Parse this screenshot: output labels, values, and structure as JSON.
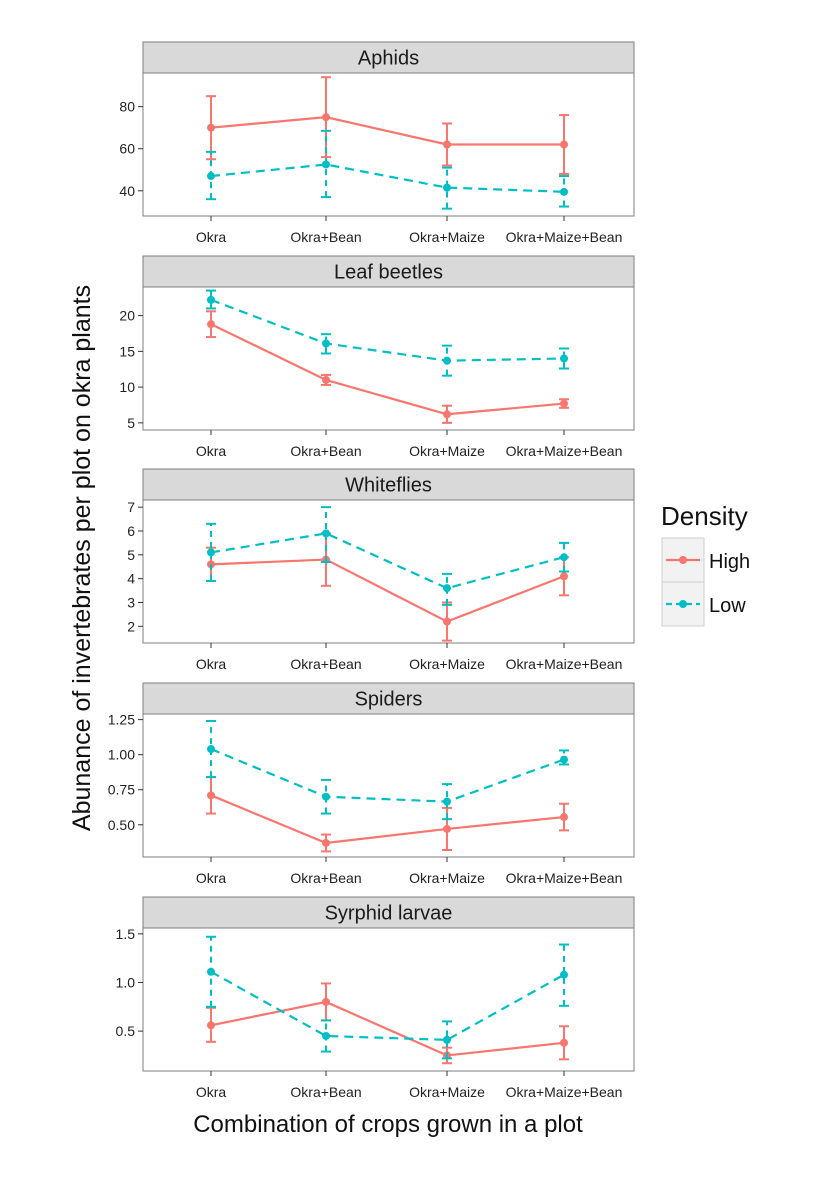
{
  "chart_data": {
    "type": "line",
    "ylabel": "Abunance of invertebrates per plot on okra plants",
    "xlabel": "Combination of crops grown in a plot",
    "categories": [
      "Okra",
      "Okra+Bean",
      "Okra+Maize",
      "Okra+Maize+Bean"
    ],
    "legend": {
      "title": "Density",
      "placement": "right",
      "entries": [
        "High",
        "Low"
      ]
    },
    "colors": {
      "High": "#F8766D",
      "Low": "#00BFC4",
      "strip": "#d9d9d9",
      "panel_border": "#7f7f7f"
    },
    "panels": [
      {
        "title": "Aphids",
        "ylim": [
          28,
          96
        ],
        "yticks": [
          40,
          60,
          80
        ],
        "ytick_labels": [
          "40",
          "60",
          "80"
        ],
        "series": [
          {
            "name": "High",
            "values": [
              70,
              75,
              62,
              62
            ],
            "lower": [
              55,
              56,
              52,
              48
            ],
            "upper": [
              85,
              94,
              72,
              76
            ]
          },
          {
            "name": "Low",
            "values": [
              47,
              52.5,
              41.5,
              39.5
            ],
            "lower": [
              36,
              37,
              31.5,
              32.5
            ],
            "upper": [
              58.5,
              68.5,
              51,
              47
            ]
          }
        ]
      },
      {
        "title": "Leaf beetles",
        "ylim": [
          4,
          24
        ],
        "yticks": [
          5,
          10,
          15,
          20
        ],
        "ytick_labels": [
          "5",
          "10",
          "15",
          "20"
        ],
        "series": [
          {
            "name": "High",
            "values": [
              18.8,
              11.0,
              6.2,
              7.7
            ],
            "lower": [
              17.0,
              10.3,
              5.0,
              7.1
            ],
            "upper": [
              20.6,
              11.7,
              7.4,
              8.3
            ]
          },
          {
            "name": "Low",
            "values": [
              22.2,
              16.1,
              13.7,
              14.0
            ],
            "lower": [
              21.0,
              14.7,
              11.6,
              12.6
            ],
            "upper": [
              23.5,
              17.4,
              15.8,
              15.4
            ]
          }
        ]
      },
      {
        "title": "Whiteflies",
        "ylim": [
          1.3,
          7.3
        ],
        "yticks": [
          2,
          3,
          4,
          5,
          6,
          7
        ],
        "ytick_labels": [
          "2",
          "3",
          "4",
          "5",
          "6",
          "7"
        ],
        "series": [
          {
            "name": "High",
            "values": [
              4.6,
              4.8,
              2.2,
              4.1
            ],
            "lower": [
              3.9,
              3.7,
              1.4,
              3.3
            ],
            "upper": [
              5.3,
              5.9,
              3.0,
              4.9
            ]
          },
          {
            "name": "Low",
            "values": [
              5.1,
              5.9,
              3.6,
              4.9
            ],
            "lower": [
              3.9,
              4.7,
              2.9,
              4.3
            ],
            "upper": [
              6.3,
              7.0,
              4.2,
              5.5
            ]
          }
        ]
      },
      {
        "title": "Spiders",
        "ylim": [
          0.27,
          1.29
        ],
        "yticks": [
          0.5,
          0.75,
          1.0,
          1.25
        ],
        "ytick_labels": [
          "0.50",
          "0.75",
          "1.00",
          "1.25"
        ],
        "series": [
          {
            "name": "High",
            "values": [
              0.71,
              0.37,
              0.47,
              0.555
            ],
            "lower": [
              0.58,
              0.31,
              0.32,
              0.46
            ],
            "upper": [
              0.84,
              0.43,
              0.62,
              0.65
            ]
          },
          {
            "name": "Low",
            "values": [
              1.04,
              0.7,
              0.665,
              0.965
            ],
            "lower": [
              0.84,
              0.58,
              0.54,
              0.93
            ],
            "upper": [
              1.24,
              0.82,
              0.79,
              1.03
            ]
          }
        ]
      },
      {
        "title": "Syrphid larvae",
        "ylim": [
          0.09,
          1.56
        ],
        "yticks": [
          0.5,
          1.0,
          1.5
        ],
        "ytick_labels": [
          "0.5",
          "1.0",
          "1.5"
        ],
        "series": [
          {
            "name": "High",
            "values": [
              0.56,
              0.8,
              0.25,
              0.38
            ],
            "lower": [
              0.39,
              0.61,
              0.17,
              0.21
            ],
            "upper": [
              0.74,
              0.99,
              0.33,
              0.55
            ]
          },
          {
            "name": "Low",
            "values": [
              1.11,
              0.45,
              0.41,
              1.08
            ],
            "lower": [
              0.75,
              0.29,
              0.22,
              0.76
            ],
            "upper": [
              1.47,
              0.61,
              0.6,
              1.39
            ]
          }
        ]
      }
    ]
  }
}
